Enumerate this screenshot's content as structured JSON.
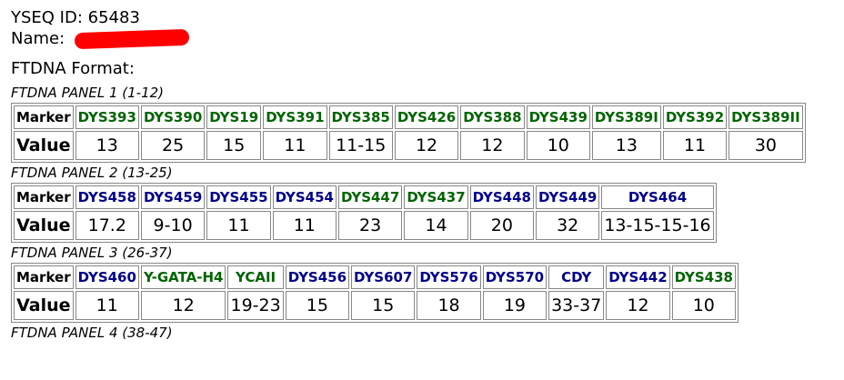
{
  "header": {
    "yseq_label": "YSEQ ID:",
    "yseq_id": "65483",
    "name_label": "Name:",
    "format_label": "FTDNA Format:"
  },
  "row_labels": [
    "Marker",
    "Value"
  ],
  "panels": [
    {
      "title": "FTDNA PANEL 1 (1-12)",
      "markers": [
        {
          "name": "DYS393",
          "value": "13",
          "color": "#006400"
        },
        {
          "name": "DYS390",
          "value": "25",
          "color": "#006400"
        },
        {
          "name": "DYS19",
          "value": "15",
          "color": "#006400"
        },
        {
          "name": "DYS391",
          "value": "11",
          "color": "#006400"
        },
        {
          "name": "DYS385",
          "value": "11-15",
          "color": "#006400"
        },
        {
          "name": "DYS426",
          "value": "12",
          "color": "#006400"
        },
        {
          "name": "DYS388",
          "value": "12",
          "color": "#006400"
        },
        {
          "name": "DYS439",
          "value": "10",
          "color": "#006400"
        },
        {
          "name": "DYS389I",
          "value": "13",
          "color": "#006400"
        },
        {
          "name": "DYS392",
          "value": "11",
          "color": "#006400"
        },
        {
          "name": "DYS389II",
          "value": "30",
          "color": "#006400"
        }
      ]
    },
    {
      "title": "FTDNA PANEL 2 (13-25)",
      "markers": [
        {
          "name": "DYS458",
          "value": "17.2",
          "color": "#00008b"
        },
        {
          "name": "DYS459",
          "value": "9-10",
          "color": "#00008b"
        },
        {
          "name": "DYS455",
          "value": "11",
          "color": "#00008b"
        },
        {
          "name": "DYS454",
          "value": "11",
          "color": "#00008b"
        },
        {
          "name": "DYS447",
          "value": "23",
          "color": "#006400"
        },
        {
          "name": "DYS437",
          "value": "14",
          "color": "#006400"
        },
        {
          "name": "DYS448",
          "value": "20",
          "color": "#00008b"
        },
        {
          "name": "DYS449",
          "value": "32",
          "color": "#00008b"
        },
        {
          "name": "DYS464",
          "value": "13-15-15-16",
          "color": "#00008b"
        }
      ]
    },
    {
      "title": "FTDNA PANEL 3 (26-37)",
      "markers": [
        {
          "name": "DYS460",
          "value": "11",
          "color": "#00008b"
        },
        {
          "name": "Y-GATA-H4",
          "value": "12",
          "color": "#006400"
        },
        {
          "name": "YCAII",
          "value": "19-23",
          "color": "#006400"
        },
        {
          "name": "DYS456",
          "value": "15",
          "color": "#00008b"
        },
        {
          "name": "DYS607",
          "value": "15",
          "color": "#00008b"
        },
        {
          "name": "DYS576",
          "value": "18",
          "color": "#00008b"
        },
        {
          "name": "DYS570",
          "value": "19",
          "color": "#00008b"
        },
        {
          "name": "CDY",
          "value": "33-37",
          "color": "#00008b"
        },
        {
          "name": "DYS442",
          "value": "12",
          "color": "#00008b"
        },
        {
          "name": "DYS438",
          "value": "10",
          "color": "#006400"
        }
      ]
    },
    {
      "title": "FTDNA PANEL 4 (38-47)",
      "markers": []
    }
  ]
}
